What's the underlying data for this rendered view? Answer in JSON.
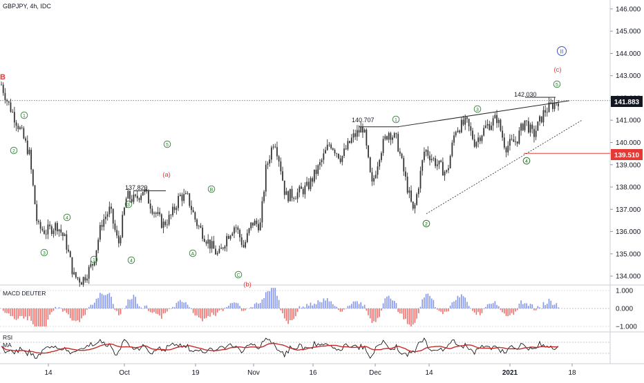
{
  "symbol_header": "GBPJPY, 4h, IDC",
  "colors": {
    "candle": "#333333",
    "accent_red": "#e53935",
    "wave_green": "#2e7d32",
    "wave_blue": "#3f51b5",
    "macd_pos": "#6f84ea",
    "macd_neg": "#ef5350",
    "rsi_line": "#000000",
    "rsi_ma": "#c62828",
    "grid": "#e0e3eb",
    "text": "#131722"
  },
  "panels": {
    "macd_label": "MACD DEUTER",
    "rsi_label": "RSI",
    "ma_label": "MA"
  },
  "price_badges": {
    "current": "141.883",
    "level": "139.510"
  },
  "corner_label": "B",
  "level_labels": [
    "137.829",
    "140.707",
    "142.030"
  ],
  "wave_labels": {
    "green": [
      "1",
      "2",
      "1",
      "3",
      "4",
      "2",
      "3",
      "4",
      "5",
      "4",
      "A",
      "B",
      "C",
      "1",
      "2",
      "3",
      "4",
      "5"
    ],
    "red": [
      "(a)",
      "(b)",
      "(c)"
    ],
    "blue": [
      "II"
    ]
  },
  "chart_data": {
    "type": "line",
    "title": "",
    "price_axis": {
      "ticks": [
        "146.000",
        "145.000",
        "144.000",
        "143.000",
        "142.000",
        "141.000",
        "140.000",
        "139.000",
        "138.000",
        "137.000",
        "136.000",
        "135.000",
        "134.000"
      ],
      "ylim": [
        133.6,
        146.4
      ]
    },
    "macd_axis": {
      "ticks": [
        "1.000",
        "0.000",
        "−1.000"
      ]
    },
    "time_axis": {
      "ticks": [
        "14",
        "Oct",
        "19",
        "Nov",
        "16",
        "Dec",
        "14",
        "2021",
        "18"
      ]
    },
    "series": [
      {
        "values": [
          [
            0,
            142.6
          ],
          [
            0.01,
            141.9
          ],
          [
            0.035,
            140.5
          ],
          [
            0.05,
            139.5
          ],
          [
            0.065,
            136.2
          ],
          [
            0.08,
            136.0
          ],
          [
            0.1,
            136.3
          ],
          [
            0.115,
            135.6
          ],
          [
            0.13,
            134.0
          ],
          [
            0.145,
            133.8
          ],
          [
            0.165,
            134.6
          ],
          [
            0.18,
            136.4
          ],
          [
            0.195,
            137.0
          ],
          [
            0.21,
            135.4
          ],
          [
            0.225,
            137.6
          ],
          [
            0.24,
            137.4
          ],
          [
            0.255,
            137.9
          ],
          [
            0.27,
            137.1
          ],
          [
            0.29,
            136.3
          ],
          [
            0.305,
            136.7
          ],
          [
            0.32,
            137.6
          ],
          [
            0.335,
            137.5
          ],
          [
            0.35,
            136.4
          ],
          [
            0.375,
            135.4
          ],
          [
            0.39,
            134.9
          ],
          [
            0.405,
            135.8
          ],
          [
            0.42,
            136.3
          ],
          [
            0.435,
            135.3
          ],
          [
            0.45,
            136.4
          ],
          [
            0.465,
            136.3
          ],
          [
            0.475,
            138.8
          ],
          [
            0.49,
            140.2
          ],
          [
            0.5,
            139.1
          ],
          [
            0.51,
            137.6
          ],
          [
            0.53,
            137.7
          ],
          [
            0.55,
            138.0
          ],
          [
            0.57,
            138.9
          ],
          [
            0.59,
            140.0
          ],
          [
            0.61,
            139.3
          ],
          [
            0.63,
            140.2
          ],
          [
            0.65,
            140.7
          ],
          [
            0.665,
            138.0
          ],
          [
            0.68,
            139.6
          ],
          [
            0.695,
            140.5
          ],
          [
            0.71,
            140.1
          ],
          [
            0.725,
            138.4
          ],
          [
            0.74,
            136.8
          ],
          [
            0.76,
            139.7
          ],
          [
            0.78,
            139.1
          ],
          [
            0.8,
            138.6
          ],
          [
            0.815,
            140.6
          ],
          [
            0.835,
            140.9
          ],
          [
            0.85,
            140.0
          ],
          [
            0.87,
            140.7
          ],
          [
            0.89,
            141.1
          ],
          [
            0.905,
            139.8
          ],
          [
            0.925,
            140.1
          ],
          [
            0.94,
            141.0
          ],
          [
            0.955,
            140.3
          ],
          [
            0.975,
            141.4
          ],
          [
            1.0,
            141.9
          ]
        ]
      }
    ]
  }
}
